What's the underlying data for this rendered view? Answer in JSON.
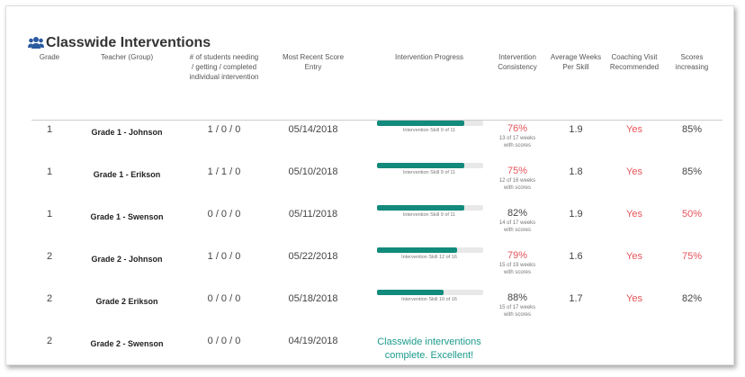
{
  "header": {
    "title": "Classwide Interventions"
  },
  "columns": [
    "Grade",
    "Teacher (Group)",
    "# of students needing / getting / completed individual intervention",
    "Most Recent Score Entry",
    "Intervention Progress",
    "Intervention Consistency",
    "Average Weeks Per Skill",
    "Coaching Visit Recommended",
    "Scores increasing"
  ],
  "alert_color": "#e5545b",
  "rows": [
    {
      "grade": "1",
      "teacher": "Grade 1 - Johnson",
      "students": "1 / 0 / 0",
      "date": "05/14/2018",
      "progress": {
        "label": "Intervention Skill 9 of 11",
        "skill": 9,
        "of": 11
      },
      "consistency": {
        "value": "76%",
        "note": "13 of 17 weeks with scores",
        "alert": true
      },
      "weeks": "1.9",
      "coaching": {
        "value": "Yes",
        "alert": true
      },
      "scores": {
        "value": "85%",
        "alert": false
      }
    },
    {
      "grade": "1",
      "teacher": "Grade 1 - Erikson",
      "students": "1 / 1 / 0",
      "date": "05/10/2018",
      "progress": {
        "label": "Intervention Skill 9 of 11",
        "skill": 9,
        "of": 11
      },
      "consistency": {
        "value": "75%",
        "note": "12 of 16 weeks with scores",
        "alert": true
      },
      "weeks": "1.8",
      "coaching": {
        "value": "Yes",
        "alert": true
      },
      "scores": {
        "value": "85%",
        "alert": false
      }
    },
    {
      "grade": "1",
      "teacher": "Grade 1 - Swenson",
      "students": "0 / 0 / 0",
      "date": "05/11/2018",
      "progress": {
        "label": "Intervention Skill 9 of 11",
        "skill": 9,
        "of": 11
      },
      "consistency": {
        "value": "82%",
        "note": "14 of 17 weeks with scores",
        "alert": false
      },
      "weeks": "1.9",
      "coaching": {
        "value": "Yes",
        "alert": true
      },
      "scores": {
        "value": "50%",
        "alert": true
      }
    },
    {
      "grade": "2",
      "teacher": "Grade 2 - Johnson",
      "students": "1 / 0 / 0",
      "date": "05/22/2018",
      "progress": {
        "label": "Intervention Skill 12 of 16",
        "skill": 12,
        "of": 16
      },
      "consistency": {
        "value": "79%",
        "note": "15 of 19 weeks with scores",
        "alert": true
      },
      "weeks": "1.6",
      "coaching": {
        "value": "Yes",
        "alert": true
      },
      "scores": {
        "value": "75%",
        "alert": true
      }
    },
    {
      "grade": "2",
      "teacher": "Grade 2 Erikson",
      "students": "0 / 0 / 0",
      "date": "05/18/2018",
      "progress": {
        "label": "Intervention Skill 10 of 16",
        "skill": 10,
        "of": 16
      },
      "consistency": {
        "value": "88%",
        "note": "15 of 17 weeks with scores",
        "alert": false
      },
      "weeks": "1.7",
      "coaching": {
        "value": "Yes",
        "alert": true
      },
      "scores": {
        "value": "82%",
        "alert": false
      }
    },
    {
      "grade": "2",
      "teacher": "Grade 2 - Swenson",
      "students": "0 / 0 / 0",
      "date": "04/19/2018",
      "complete": "Classwide interventions complete. Excellent!"
    }
  ]
}
